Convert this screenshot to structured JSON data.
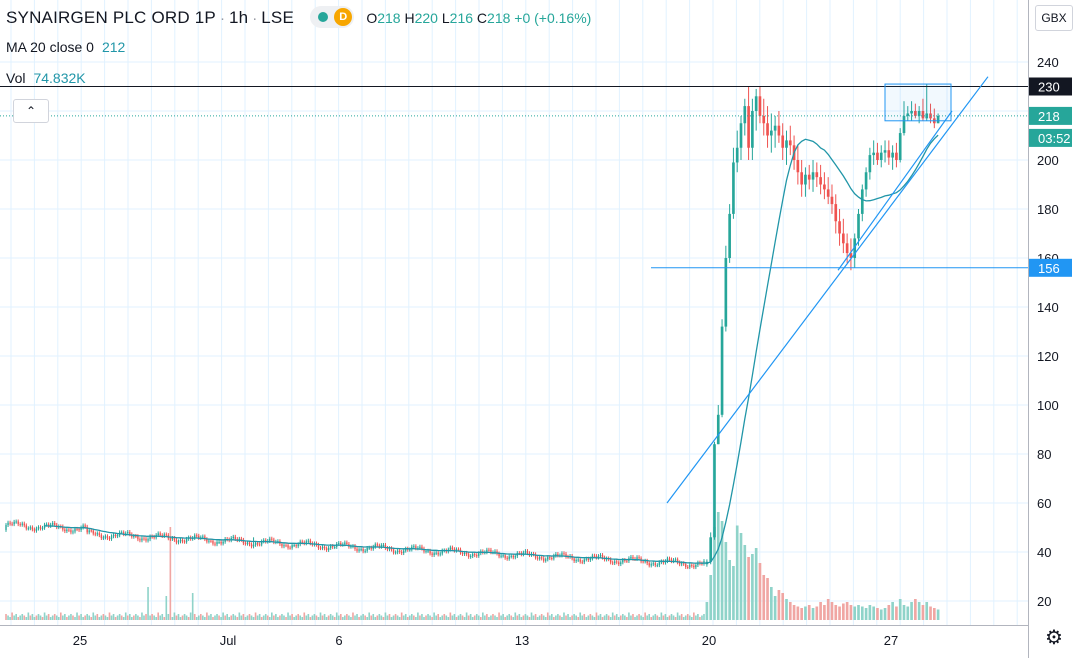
{
  "header": {
    "symbol": "SYNAIRGEN PLC ORD 1P",
    "interval": "1h",
    "exchange": "LSE",
    "badge_letter": "D",
    "ohlc": {
      "o_label": "O",
      "o": "218",
      "h_label": "H",
      "h": "220",
      "l_label": "L",
      "l": "216",
      "c_label": "C",
      "c": "218",
      "change": "+0 (+0.16%)"
    },
    "ma_label": "MA 20 close 0",
    "ma_value": "212",
    "vol_label": "Vol",
    "vol_value": "74.832K",
    "currency": "GBX",
    "collapse_icon": "chevron-up-icon",
    "settings_icon": "gear-icon"
  },
  "colors": {
    "up": "#26a69a",
    "down": "#ef5350",
    "vol_up": "#8fd3c9",
    "vol_down": "#f0a6a3",
    "ma": "#2196a8",
    "drawing": "#2196f3",
    "grid": "#e1f2ff",
    "price_line": "#26a69a",
    "hline_label": "#2196f3"
  },
  "chart_data": {
    "type": "candlestick",
    "y_axis": {
      "ticks": [
        20,
        40,
        60,
        80,
        100,
        120,
        140,
        160,
        180,
        200,
        220,
        240
      ],
      "range": [
        12,
        252
      ]
    },
    "x_axis": {
      "tick_labels": [
        "25",
        "Jul",
        "6",
        "13",
        "20",
        "27"
      ]
    },
    "last_price": 218,
    "countdown": "03:52",
    "horizontal_levels": [
      {
        "value": 230,
        "label": "230"
      },
      {
        "value": 156,
        "label": "156"
      }
    ],
    "phase1": {
      "start_price": 49,
      "end_price": 35,
      "candles": 345,
      "spike_index": 122
    },
    "candles": [
      [
        35,
        37,
        34,
        36
      ],
      [
        36,
        48,
        35,
        46
      ],
      [
        46,
        85,
        45,
        84
      ],
      [
        84,
        100,
        84,
        96
      ],
      [
        96,
        135,
        95,
        132
      ],
      [
        132,
        165,
        130,
        160
      ],
      [
        160,
        182,
        158,
        178
      ],
      [
        178,
        205,
        176,
        199
      ],
      [
        199,
        212,
        195,
        205
      ],
      [
        205,
        218,
        200,
        215
      ],
      [
        215,
        225,
        210,
        222
      ],
      [
        222,
        230,
        200,
        205
      ],
      [
        205,
        225,
        200,
        220
      ],
      [
        220,
        229,
        212,
        226
      ],
      [
        226,
        230,
        215,
        218
      ],
      [
        218,
        225,
        210,
        215
      ],
      [
        215,
        222,
        205,
        210
      ],
      [
        210,
        219,
        203,
        212
      ],
      [
        212,
        218,
        205,
        214
      ],
      [
        214,
        220,
        207,
        210
      ],
      [
        210,
        215,
        200,
        205
      ],
      [
        205,
        212,
        198,
        208
      ],
      [
        208,
        214,
        202,
        206
      ],
      [
        206,
        210,
        196,
        200
      ],
      [
        200,
        206,
        190,
        195
      ],
      [
        195,
        200,
        185,
        190
      ],
      [
        190,
        197,
        185,
        194
      ],
      [
        194,
        198,
        188,
        192
      ],
      [
        192,
        200,
        187,
        195
      ],
      [
        195,
        199,
        189,
        193
      ],
      [
        193,
        198,
        186,
        190
      ],
      [
        190,
        195,
        184,
        188
      ],
      [
        188,
        193,
        182,
        185
      ],
      [
        185,
        190,
        178,
        182
      ],
      [
        182,
        186,
        170,
        175
      ],
      [
        175,
        180,
        165,
        170
      ],
      [
        170,
        176,
        162,
        166
      ],
      [
        166,
        170,
        158,
        162
      ],
      [
        162,
        168,
        155,
        160
      ],
      [
        160,
        170,
        156,
        168
      ],
      [
        168,
        180,
        165,
        178
      ],
      [
        178,
        190,
        175,
        188
      ],
      [
        188,
        197,
        185,
        195
      ],
      [
        195,
        205,
        192,
        202
      ],
      [
        202,
        208,
        198,
        203
      ],
      [
        203,
        207,
        198,
        200
      ],
      [
        200,
        206,
        197,
        203
      ],
      [
        203,
        208,
        199,
        204
      ],
      [
        204,
        208,
        198,
        201
      ],
      [
        201,
        206,
        196,
        203
      ],
      [
        203,
        207,
        197,
        200
      ],
      [
        200,
        213,
        199,
        211
      ],
      [
        211,
        224,
        210,
        218
      ],
      [
        218,
        222,
        216,
        219
      ],
      [
        219,
        224,
        216,
        220
      ],
      [
        220,
        223,
        217,
        218
      ],
      [
        218,
        222,
        215,
        220
      ],
      [
        220,
        225,
        216,
        217
      ],
      [
        217,
        231,
        216,
        219
      ],
      [
        219,
        223,
        215,
        217
      ],
      [
        217,
        221,
        213,
        215
      ],
      [
        215,
        219,
        215,
        218
      ]
    ],
    "volume": {
      "baseline_levels": [
        4,
        3,
        2,
        5,
        3,
        4,
        2,
        3
      ],
      "spikes": [
        {
          "at": 70,
          "value": 22
        },
        {
          "at": 79,
          "value": 16
        },
        {
          "at": 81,
          "value": 62
        },
        {
          "at": 92,
          "value": 18
        }
      ],
      "phase2_values": [
        12,
        30,
        62,
        72,
        66,
        52,
        40,
        36,
        63,
        58,
        50,
        42,
        44,
        48,
        38,
        30,
        28,
        22,
        16,
        20,
        18,
        14,
        12,
        10,
        9,
        8,
        9,
        10,
        8,
        9,
        12,
        10,
        14,
        12,
        10,
        9,
        11,
        12,
        10,
        9,
        10,
        9,
        8,
        10,
        9,
        8,
        7,
        8,
        10,
        12,
        9,
        14,
        10,
        9,
        12,
        14,
        12,
        10,
        12,
        9,
        8,
        7
      ]
    },
    "drawings": {
      "trend_long": {
        "from": [
          "start_x",
          60
        ],
        "to": [
          "end_x",
          234
        ]
      },
      "trend_short": {
        "from": [
          40,
          155
        ],
        "to": [
          62,
          220
        ]
      },
      "range_box": {
        "top": 231,
        "bottom": 216
      }
    }
  }
}
